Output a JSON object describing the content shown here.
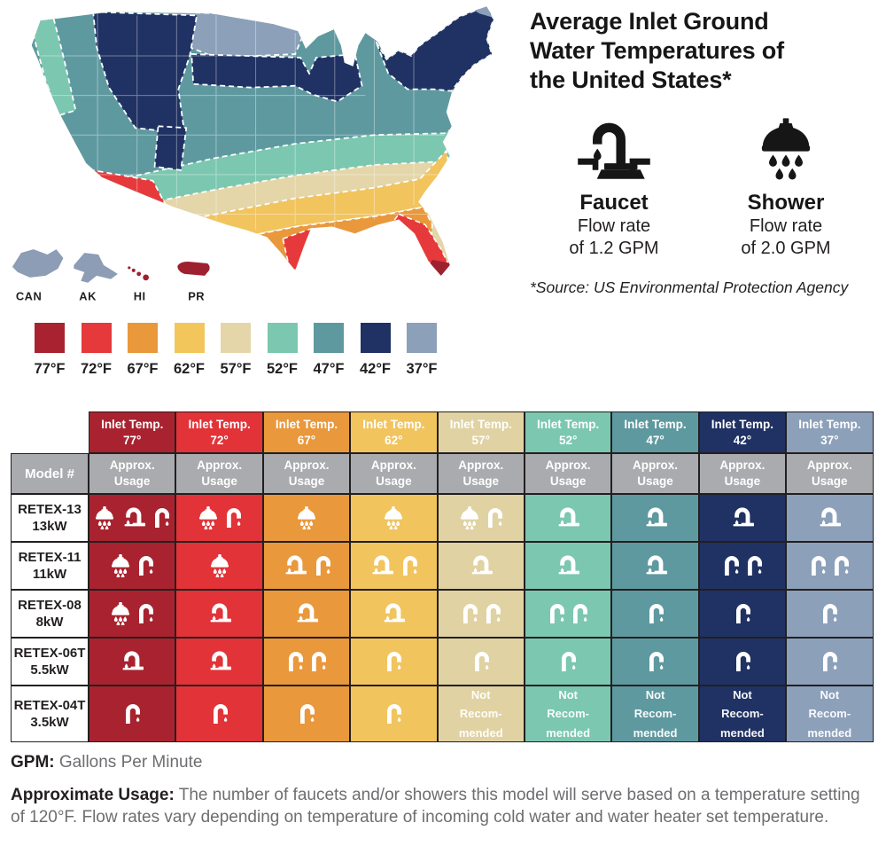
{
  "info": {
    "title_lines": [
      "Average Inlet Ground",
      "Water Temperatures of",
      "the United States*"
    ],
    "fixtures": [
      {
        "icon": "faucet-icon",
        "name": "Faucet",
        "line1": "Flow rate",
        "line2": "of 1.2 GPM"
      },
      {
        "icon": "shower-icon",
        "name": "Shower",
        "line1": "Flow rate",
        "line2": "of 2.0 GPM"
      }
    ],
    "source": "*Source: US Environmental Protection Agency"
  },
  "map": {
    "insets": [
      {
        "label": "CAN",
        "color": "#8c9db5"
      },
      {
        "label": "AK",
        "color": "#8c9db5"
      },
      {
        "label": "HI",
        "color": "#9e2130"
      },
      {
        "label": "PR",
        "color": "#9e2130"
      }
    ]
  },
  "legend": {
    "items": [
      {
        "label": "77°F",
        "color": "#a8232f"
      },
      {
        "label": "72°F",
        "color": "#e6393c"
      },
      {
        "label": "67°F",
        "color": "#e9983c"
      },
      {
        "label": "62°F",
        "color": "#f3c65b"
      },
      {
        "label": "57°F",
        "color": "#e4d6a9"
      },
      {
        "label": "52°F",
        "color": "#7cc7b0"
      },
      {
        "label": "47°F",
        "color": "#5f99a0"
      },
      {
        "label": "42°F",
        "color": "#203263"
      },
      {
        "label": "37°F",
        "color": "#8ca0ba"
      }
    ]
  },
  "table": {
    "corner_label": "Model #",
    "usage_label": [
      "Approx.",
      "Usage"
    ],
    "usage_bg": "#a9abae",
    "not_recommended": [
      "Not",
      "Recom-",
      "mended"
    ],
    "columns": [
      {
        "label": "Inlet Temp.",
        "temp": "77°",
        "color": "#a8232f"
      },
      {
        "label": "Inlet Temp.",
        "temp": "72°",
        "color": "#e23338"
      },
      {
        "label": "Inlet Temp.",
        "temp": "67°",
        "color": "#e9983c"
      },
      {
        "label": "Inlet Temp.",
        "temp": "62°",
        "color": "#f1c45e"
      },
      {
        "label": "Inlet Temp.",
        "temp": "57°",
        "color": "#e0d2a2"
      },
      {
        "label": "Inlet Temp.",
        "temp": "52°",
        "color": "#7cc7b0"
      },
      {
        "label": "Inlet Temp.",
        "temp": "47°",
        "color": "#5f99a0"
      },
      {
        "label": "Inlet Temp.",
        "temp": "42°",
        "color": "#203263"
      },
      {
        "label": "Inlet Temp.",
        "temp": "37°",
        "color": "#8ca0ba"
      }
    ],
    "rows": [
      {
        "model": "RETEX-13",
        "power": "13kW",
        "cells": [
          [
            "shower",
            "faucet",
            "faucet-sm"
          ],
          [
            "shower",
            "faucet-sm"
          ],
          [
            "shower"
          ],
          [
            "shower"
          ],
          [
            "shower",
            "faucet-sm"
          ],
          [
            "faucet"
          ],
          [
            "faucet"
          ],
          [
            "faucet"
          ],
          [
            "faucet"
          ]
        ]
      },
      {
        "model": "RETEX-11",
        "power": "11kW",
        "cells": [
          [
            "shower",
            "faucet-sm"
          ],
          [
            "shower"
          ],
          [
            "faucet",
            "faucet-sm"
          ],
          [
            "faucet",
            "faucet-sm"
          ],
          [
            "faucet"
          ],
          [
            "faucet"
          ],
          [
            "faucet"
          ],
          [
            "faucet-sm",
            "faucet-sm"
          ],
          [
            "faucet-sm",
            "faucet-sm"
          ]
        ]
      },
      {
        "model": "RETEX-08",
        "power": "8kW",
        "cells": [
          [
            "shower",
            "faucet-sm"
          ],
          [
            "faucet"
          ],
          [
            "faucet"
          ],
          [
            "faucet"
          ],
          [
            "faucet-sm",
            "faucet-sm"
          ],
          [
            "faucet-sm",
            "faucet-sm"
          ],
          [
            "faucet-sm"
          ],
          [
            "faucet-sm"
          ],
          [
            "faucet-sm"
          ]
        ]
      },
      {
        "model": "RETEX-06T",
        "power": "5.5kW",
        "cells": [
          [
            "faucet"
          ],
          [
            "faucet"
          ],
          [
            "faucet-sm",
            "faucet-sm"
          ],
          [
            "faucet-sm"
          ],
          [
            "faucet-sm"
          ],
          [
            "faucet-sm"
          ],
          [
            "faucet-sm"
          ],
          [
            "faucet-sm"
          ],
          [
            "faucet-sm"
          ]
        ]
      },
      {
        "model": "RETEX-04T",
        "power": "3.5kW",
        "cells": [
          [
            "faucet-sm"
          ],
          [
            "faucet-sm"
          ],
          [
            "faucet-sm"
          ],
          [
            "faucet-sm"
          ],
          "NR",
          "NR",
          "NR",
          "NR",
          "NR"
        ]
      }
    ]
  },
  "notes": {
    "gpm_term": "GPM:",
    "gpm_def": " Gallons Per Minute",
    "usage_term": "Approximate Usage:",
    "usage_def": " The number of faucets and/or showers this model will serve based on a temperature setting of 120°F. Flow rates vary depending on temperature of incoming cold water and water heater set temperature."
  },
  "chart_data": {
    "type": "table",
    "title": "Average Inlet Ground Water Temperatures of the United States*",
    "map_type": "choropleth",
    "legend_scale_f": [
      77,
      72,
      67,
      62,
      57,
      52,
      47,
      42,
      37
    ],
    "faucet_flow_gpm": 1.2,
    "shower_flow_gpm": 2.0,
    "columns_inlet_temp_f": [
      77,
      72,
      67,
      62,
      57,
      52,
      47,
      42,
      37
    ],
    "rows": [
      {
        "model": "RETEX-13",
        "power_kw": 13,
        "usage": [
          {
            "showers": 1,
            "faucets": 2
          },
          {
            "showers": 1,
            "faucets": 1
          },
          {
            "showers": 1,
            "faucets": 0
          },
          {
            "showers": 1,
            "faucets": 0
          },
          {
            "showers": 1,
            "faucets": 1
          },
          {
            "showers": 0,
            "faucets": 1
          },
          {
            "showers": 0,
            "faucets": 1
          },
          {
            "showers": 0,
            "faucets": 1
          },
          {
            "showers": 0,
            "faucets": 1
          }
        ]
      },
      {
        "model": "RETEX-11",
        "power_kw": 11,
        "usage": [
          {
            "showers": 1,
            "faucets": 1
          },
          {
            "showers": 1,
            "faucets": 0
          },
          {
            "showers": 0,
            "faucets": 2
          },
          {
            "showers": 0,
            "faucets": 2
          },
          {
            "showers": 0,
            "faucets": 1
          },
          {
            "showers": 0,
            "faucets": 1
          },
          {
            "showers": 0,
            "faucets": 1
          },
          {
            "showers": 0,
            "faucets": 2
          },
          {
            "showers": 0,
            "faucets": 2
          }
        ]
      },
      {
        "model": "RETEX-08",
        "power_kw": 8,
        "usage": [
          {
            "showers": 1,
            "faucets": 1
          },
          {
            "showers": 0,
            "faucets": 1
          },
          {
            "showers": 0,
            "faucets": 1
          },
          {
            "showers": 0,
            "faucets": 1
          },
          {
            "showers": 0,
            "faucets": 2
          },
          {
            "showers": 0,
            "faucets": 2
          },
          {
            "showers": 0,
            "faucets": 1
          },
          {
            "showers": 0,
            "faucets": 1
          },
          {
            "showers": 0,
            "faucets": 1
          }
        ]
      },
      {
        "model": "RETEX-06T",
        "power_kw": 5.5,
        "usage": [
          {
            "showers": 0,
            "faucets": 1
          },
          {
            "showers": 0,
            "faucets": 1
          },
          {
            "showers": 0,
            "faucets": 2
          },
          {
            "showers": 0,
            "faucets": 1
          },
          {
            "showers": 0,
            "faucets": 1
          },
          {
            "showers": 0,
            "faucets": 1
          },
          {
            "showers": 0,
            "faucets": 1
          },
          {
            "showers": 0,
            "faucets": 1
          },
          {
            "showers": 0,
            "faucets": 1
          }
        ]
      },
      {
        "model": "RETEX-04T",
        "power_kw": 3.5,
        "usage": [
          {
            "showers": 0,
            "faucets": 1
          },
          {
            "showers": 0,
            "faucets": 1
          },
          {
            "showers": 0,
            "faucets": 1
          },
          {
            "showers": 0,
            "faucets": 1
          },
          "not recommended",
          "not recommended",
          "not recommended",
          "not recommended",
          "not recommended"
        ]
      }
    ]
  }
}
